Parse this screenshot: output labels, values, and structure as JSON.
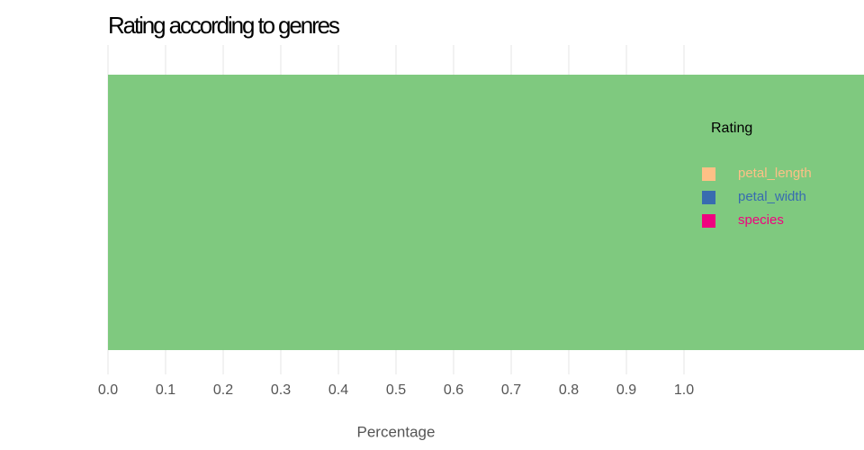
{
  "chart_data": {
    "type": "stacked-bar",
    "orientation": "horizontal",
    "title": "Rating according to genres",
    "x_label": "Percentage",
    "legend_title": "Rating",
    "legend_position": "right",
    "categories": [
      null
    ],
    "series": [
      {
        "color": "#7fc97f",
        "values": [
          1.3125
        ]
      },
      {
        "name": "petal_length",
        "color": "#fdc086",
        "values": [
          0
        ]
      },
      {
        "name": "petal_width",
        "color": "#386cb0",
        "values": [
          0
        ]
      },
      {
        "name": "species",
        "color": "#f0027f",
        "values": [
          0
        ]
      }
    ],
    "xlim": [
      0,
      1.3125
    ],
    "xticks": [
      {
        "value": 0,
        "label": "0.0"
      },
      0.1,
      0.2,
      0.3,
      0.4,
      0.5,
      0.6,
      0.7,
      0.8,
      0.9,
      {
        "value": 1,
        "label": "1.0"
      }
    ],
    "grid": true
  }
}
